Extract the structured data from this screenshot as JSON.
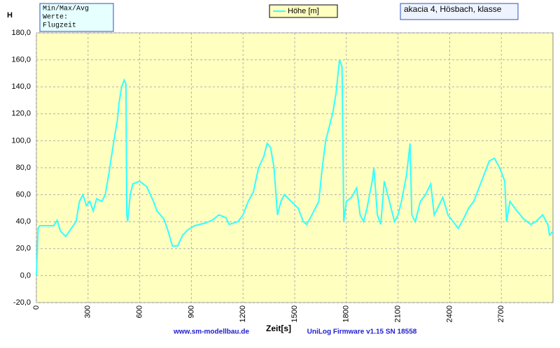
{
  "chart_data": {
    "type": "line",
    "y_label": "H",
    "x_label": "Zeit[s]",
    "stats_box": [
      "Min/Max/Avg",
      "Werte:",
      "Flugzeit"
    ],
    "info": "akacia 4, Hösbach, klasse",
    "footer": [
      "www.sm-modellbau.de",
      "UniLog Firmware v1.15 SN 18558"
    ],
    "grid": true,
    "xlim": [
      0,
      3000
    ],
    "xticks": [
      0,
      300,
      600,
      900,
      1200,
      1500,
      1800,
      2100,
      2400,
      2700
    ],
    "ylim": [
      -20,
      180
    ],
    "yticks": [
      {
        "value": -20,
        "label": "-20,0"
      },
      {
        "value": 0,
        "label": "0,0"
      },
      {
        "value": 20,
        "label": "20,0"
      },
      {
        "value": 40,
        "label": "40,0"
      },
      {
        "value": 60,
        "label": "60,0"
      },
      {
        "value": 80,
        "label": "80,0"
      },
      {
        "value": 100,
        "label": "100,0"
      },
      {
        "value": 120,
        "label": "120,0"
      },
      {
        "value": 140,
        "label": "140,0"
      },
      {
        "value": 160,
        "label": "160,0"
      },
      {
        "value": 180,
        "label": "180,0"
      }
    ],
    "x": [
      0,
      10,
      20,
      100,
      120,
      140,
      170,
      230,
      250,
      270,
      290,
      310,
      330,
      350,
      380,
      400,
      420,
      450,
      470,
      480,
      495,
      510,
      520,
      525,
      530,
      545,
      560,
      600,
      640,
      680,
      700,
      740,
      760,
      790,
      820,
      850,
      880,
      920,
      980,
      1020,
      1060,
      1100,
      1120,
      1170,
      1200,
      1230,
      1260,
      1290,
      1320,
      1340,
      1360,
      1380,
      1400,
      1420,
      1440,
      1480,
      1520,
      1550,
      1570,
      1600,
      1640,
      1660,
      1680,
      1700,
      1720,
      1740,
      1760,
      1775,
      1785,
      1800,
      1830,
      1860,
      1880,
      1900,
      1920,
      1950,
      1960,
      1980,
      2000,
      2020,
      2040,
      2080,
      2100,
      2120,
      2150,
      2170,
      2180,
      2200,
      2230,
      2260,
      2290,
      2310,
      2330,
      2360,
      2390,
      2420,
      2450,
      2480,
      2510,
      2540,
      2570,
      2600,
      2630,
      2660,
      2690,
      2720,
      2730,
      2750,
      2790,
      2830,
      2870,
      2900,
      2940,
      2970,
      2980,
      3000
    ],
    "series": [
      {
        "name": "Höhe [m]",
        "color": "#33ffff",
        "values": [
          0,
          35,
          37,
          37,
          41,
          33,
          29,
          40,
          55,
          60,
          52,
          55,
          48,
          57,
          55,
          60,
          75,
          100,
          115,
          128,
          140,
          145,
          142,
          45,
          40,
          60,
          68,
          70,
          66,
          55,
          48,
          42,
          35,
          22,
          22,
          30,
          34,
          37,
          39,
          41,
          45,
          43,
          38,
          40,
          45,
          55,
          62,
          80,
          88,
          98,
          95,
          80,
          45,
          55,
          60,
          55,
          50,
          40,
          38,
          45,
          55,
          80,
          100,
          110,
          120,
          135,
          160,
          155,
          40,
          55,
          58,
          65,
          45,
          40,
          50,
          70,
          80,
          45,
          38,
          70,
          60,
          40,
          45,
          55,
          75,
          98,
          45,
          40,
          55,
          60,
          68,
          45,
          50,
          58,
          45,
          40,
          35,
          42,
          50,
          55,
          65,
          75,
          85,
          87,
          80,
          70,
          40,
          55,
          48,
          42,
          38,
          40,
          45,
          38,
          30,
          33
        ]
      }
    ]
  }
}
